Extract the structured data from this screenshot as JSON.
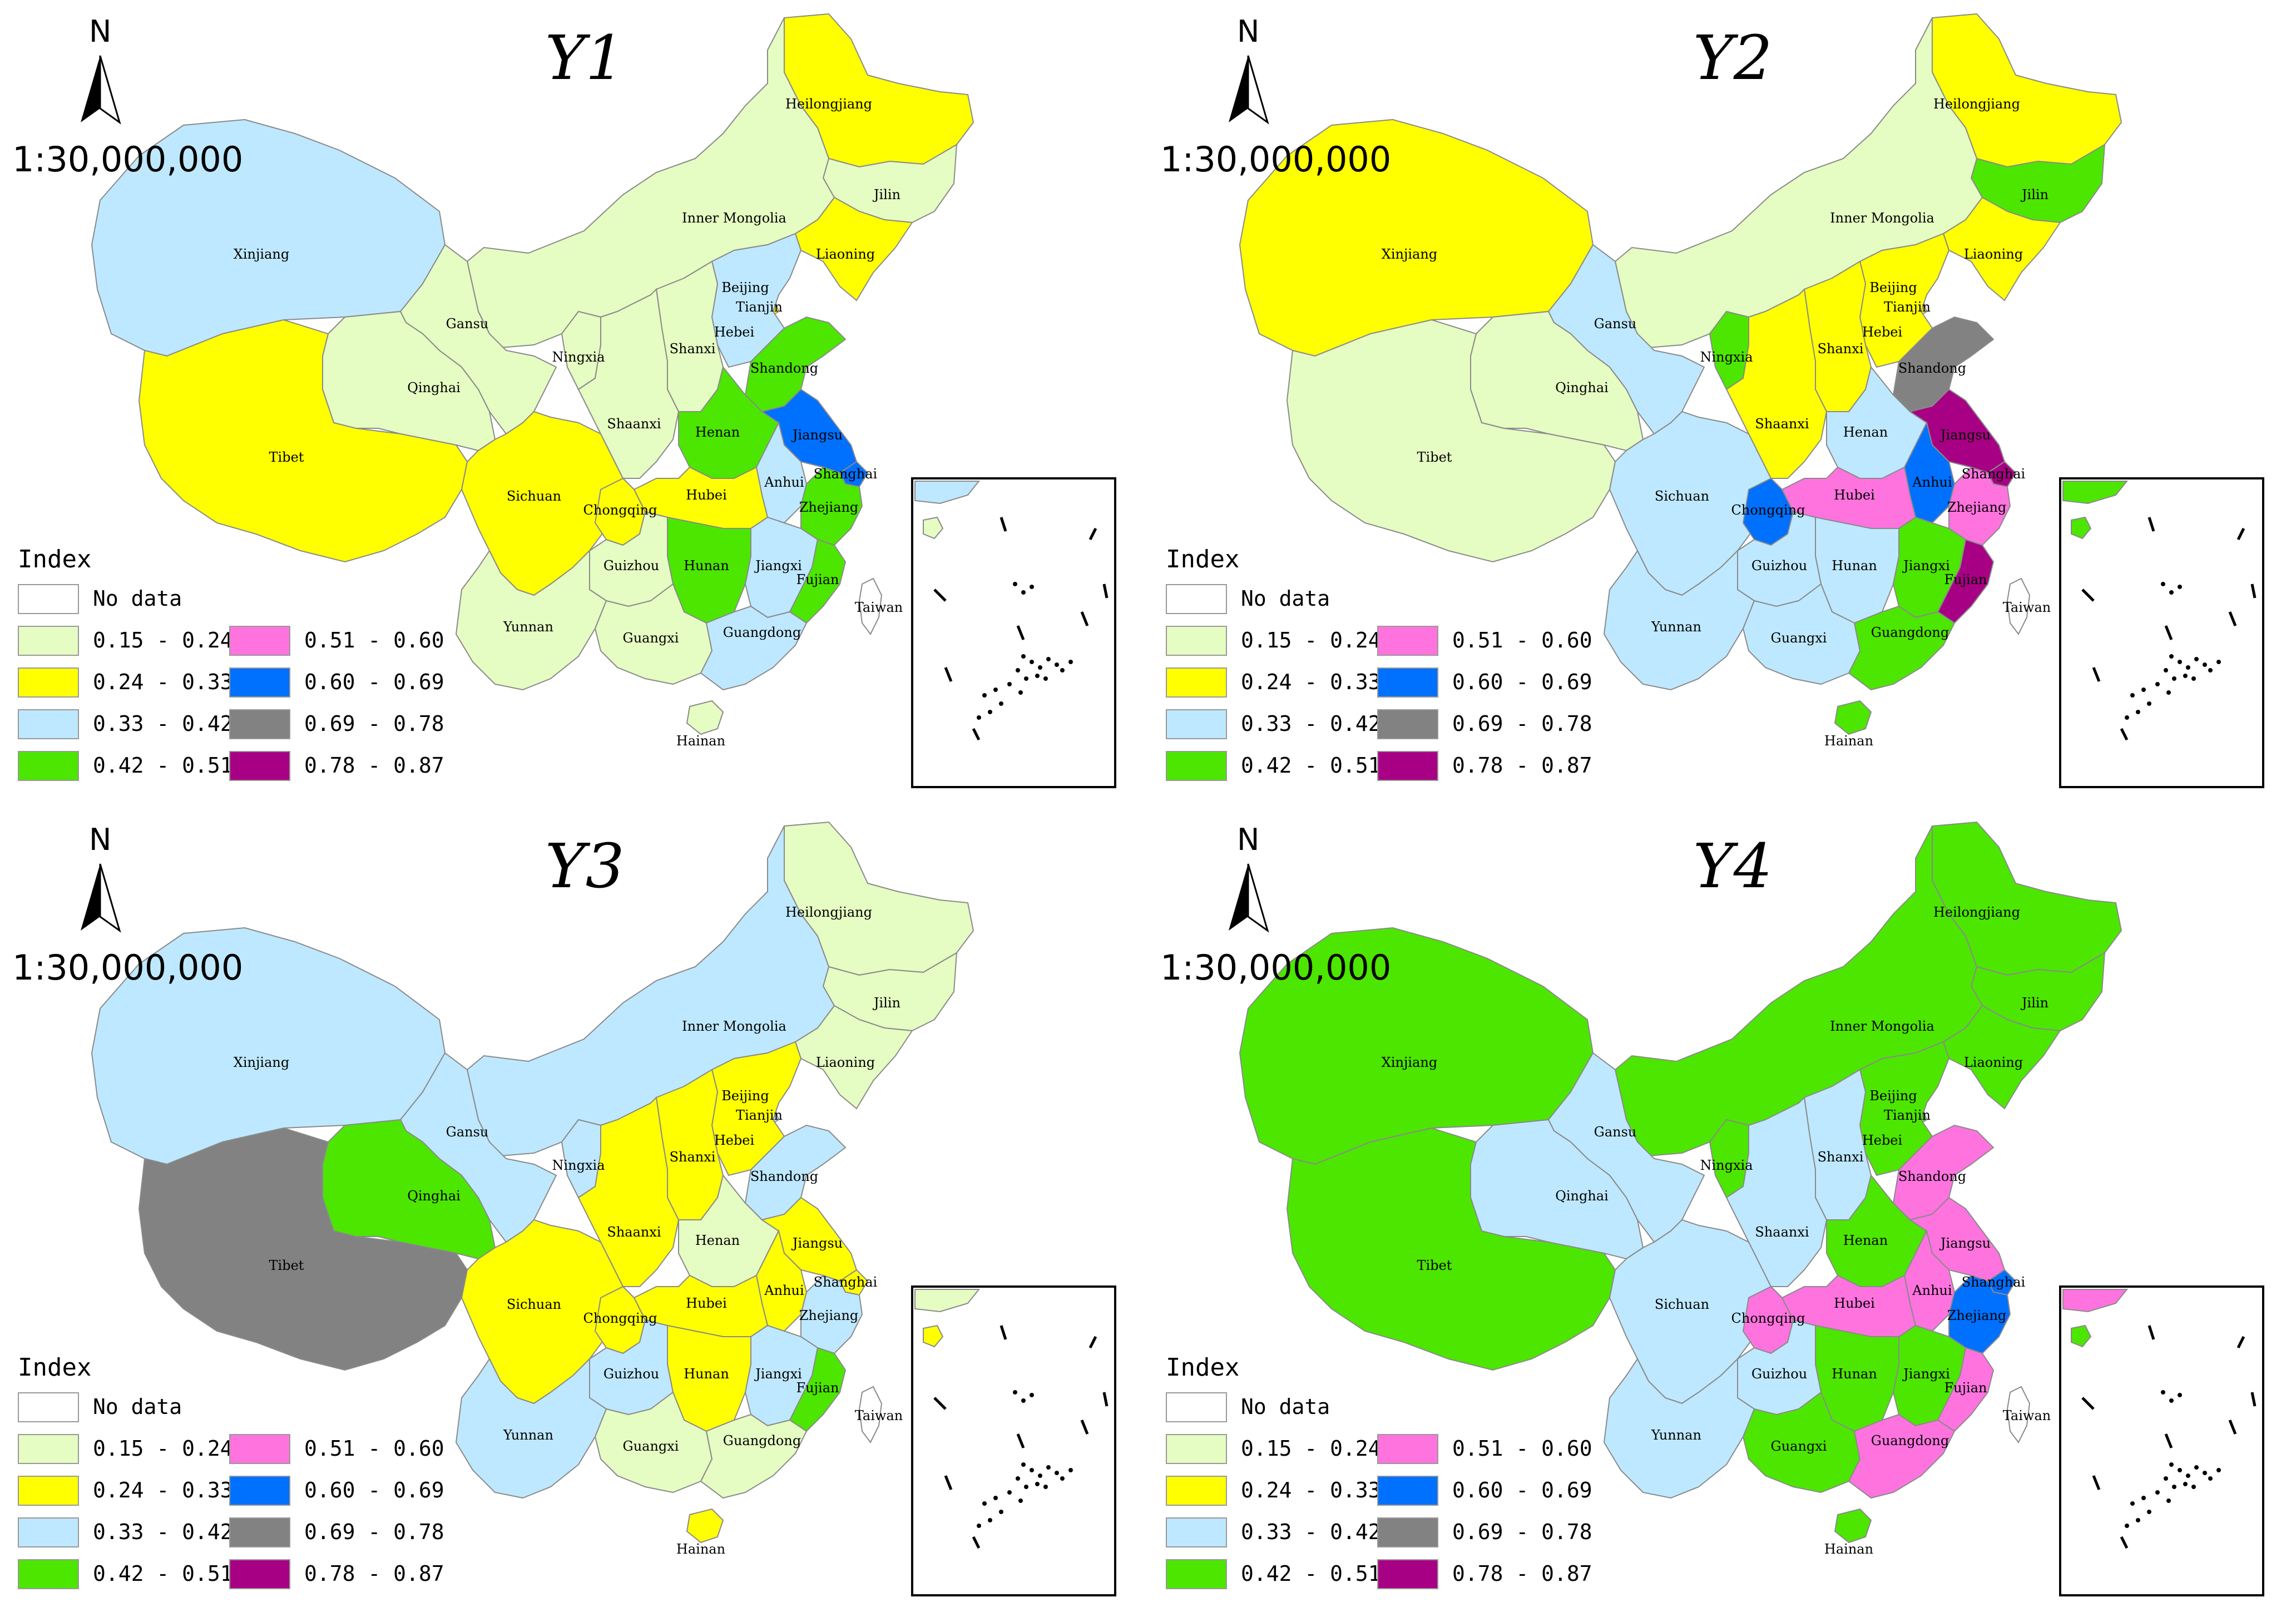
{
  "panels": [
    {
      "title": "Y1",
      "values": {
        "Heilongjiang": "0.24 - 0.33",
        "Jilin": "0.15 - 0.24",
        "Liaoning": "0.24 - 0.33",
        "Inner Mongolia": "0.15 - 0.24",
        "Xinjiang": "0.33 - 0.42",
        "Gansu": "0.15 - 0.24",
        "Qinghai": "0.15 - 0.24",
        "Ningxia": "0.15 - 0.24",
        "Tibet": "0.24 - 0.33",
        "Beijing": "0.33 - 0.42",
        "Tianjin": "0.24 - 0.33",
        "Hebei": "0.33 - 0.42",
        "Shanxi": "0.15 - 0.24",
        "Shaanxi": "0.15 - 0.24",
        "Shandong": "0.42 - 0.51",
        "Henan": "0.42 - 0.51",
        "Jiangsu": "0.60 - 0.69",
        "Anhui": "0.33 - 0.42",
        "Shanghai": "0.60 - 0.69",
        "Zhejiang": "0.42 - 0.51",
        "Hubei": "0.24 - 0.33",
        "Sichuan": "0.24 - 0.33",
        "Chongqing": "0.24 - 0.33",
        "Hunan": "0.42 - 0.51",
        "Jiangxi": "0.33 - 0.42",
        "Fujian": "0.42 - 0.51",
        "Guizhou": "0.15 - 0.24",
        "Yunnan": "0.15 - 0.24",
        "Guangxi": "0.15 - 0.24",
        "Guangdong": "0.33 - 0.42",
        "Hainan": "0.15 - 0.24",
        "Taiwan": "No data"
      }
    },
    {
      "title": "Y2",
      "values": {
        "Heilongjiang": "0.24 - 0.33",
        "Jilin": "0.42 - 0.51",
        "Liaoning": "0.24 - 0.33",
        "Inner Mongolia": "0.15 - 0.24",
        "Xinjiang": "0.24 - 0.33",
        "Gansu": "0.33 - 0.42",
        "Qinghai": "0.15 - 0.24",
        "Ningxia": "0.42 - 0.51",
        "Tibet": "0.15 - 0.24",
        "Beijing": "0.60 - 0.69",
        "Tianjin": "0.24 - 0.33",
        "Hebei": "0.24 - 0.33",
        "Shanxi": "0.24 - 0.33",
        "Shaanxi": "0.24 - 0.33",
        "Shandong": "0.69 - 0.78",
        "Henan": "0.33 - 0.42",
        "Jiangsu": "0.78 - 0.87",
        "Anhui": "0.60 - 0.69",
        "Shanghai": "0.78 - 0.87",
        "Zhejiang": "0.51 - 0.60",
        "Hubei": "0.51 - 0.60",
        "Sichuan": "0.33 - 0.42",
        "Chongqing": "0.60 - 0.69",
        "Hunan": "0.33 - 0.42",
        "Jiangxi": "0.42 - 0.51",
        "Fujian": "0.78 - 0.87",
        "Guizhou": "0.33 - 0.42",
        "Yunnan": "0.33 - 0.42",
        "Guangxi": "0.33 - 0.42",
        "Guangdong": "0.42 - 0.51",
        "Hainan": "0.42 - 0.51",
        "Taiwan": "No data"
      }
    },
    {
      "title": "Y3",
      "values": {
        "Heilongjiang": "0.15 - 0.24",
        "Jilin": "0.15 - 0.24",
        "Liaoning": "0.15 - 0.24",
        "Inner Mongolia": "0.33 - 0.42",
        "Xinjiang": "0.33 - 0.42",
        "Gansu": "0.33 - 0.42",
        "Qinghai": "0.42 - 0.51",
        "Ningxia": "0.33 - 0.42",
        "Tibet": "0.69 - 0.78",
        "Beijing": "0.51 - 0.60",
        "Tianjin": "0.33 - 0.42",
        "Hebei": "0.24 - 0.33",
        "Shanxi": "0.24 - 0.33",
        "Shaanxi": "0.24 - 0.33",
        "Shandong": "0.33 - 0.42",
        "Henan": "0.15 - 0.24",
        "Jiangsu": "0.24 - 0.33",
        "Anhui": "0.24 - 0.33",
        "Shanghai": "0.24 - 0.33",
        "Zhejiang": "0.33 - 0.42",
        "Hubei": "0.24 - 0.33",
        "Sichuan": "0.24 - 0.33",
        "Chongqing": "0.24 - 0.33",
        "Hunan": "0.24 - 0.33",
        "Jiangxi": "0.33 - 0.42",
        "Fujian": "0.42 - 0.51",
        "Guizhou": "0.33 - 0.42",
        "Yunnan": "0.33 - 0.42",
        "Guangxi": "0.15 - 0.24",
        "Guangdong": "0.15 - 0.24",
        "Hainan": "0.24 - 0.33",
        "Taiwan": "No data"
      }
    },
    {
      "title": "Y4",
      "values": {
        "Heilongjiang": "0.42 - 0.51",
        "Jilin": "0.42 - 0.51",
        "Liaoning": "0.42 - 0.51",
        "Inner Mongolia": "0.42 - 0.51",
        "Xinjiang": "0.42 - 0.51",
        "Gansu": "0.33 - 0.42",
        "Qinghai": "0.33 - 0.42",
        "Ningxia": "0.42 - 0.51",
        "Tibet": "0.42 - 0.51",
        "Beijing": "0.69 - 0.78",
        "Tianjin": "0.42 - 0.51",
        "Hebei": "0.42 - 0.51",
        "Shanxi": "0.33 - 0.42",
        "Shaanxi": "0.33 - 0.42",
        "Shandong": "0.51 - 0.60",
        "Henan": "0.42 - 0.51",
        "Jiangsu": "0.51 - 0.60",
        "Anhui": "0.51 - 0.60",
        "Shanghai": "0.60 - 0.69",
        "Zhejiang": "0.60 - 0.69",
        "Hubei": "0.51 - 0.60",
        "Sichuan": "0.33 - 0.42",
        "Chongqing": "0.51 - 0.60",
        "Hunan": "0.42 - 0.51",
        "Jiangxi": "0.42 - 0.51",
        "Fujian": "0.51 - 0.60",
        "Guizhou": "0.33 - 0.42",
        "Yunnan": "0.33 - 0.42",
        "Guangxi": "0.42 - 0.51",
        "Guangdong": "0.51 - 0.60",
        "Hainan": "0.42 - 0.51",
        "Taiwan": "No data"
      }
    }
  ],
  "north_label": "N",
  "scale": "1:30,000,000",
  "legend": {
    "title": "Index",
    "no_data": {
      "label": "No data",
      "color": "#ffffff"
    },
    "classes": [
      {
        "label": "0.15 - 0.24",
        "color": "#e5fcc2"
      },
      {
        "label": "0.24 - 0.33",
        "color": "#ffff00"
      },
      {
        "label": "0.33 - 0.42",
        "color": "#bee8ff"
      },
      {
        "label": "0.42 - 0.51",
        "color": "#4ce600"
      },
      {
        "label": "0.51 - 0.60",
        "color": "#ff73df"
      },
      {
        "label": "0.60 - 0.69",
        "color": "#0070ff"
      },
      {
        "label": "0.69 - 0.78",
        "color": "#828282"
      },
      {
        "label": "0.78 - 0.87",
        "color": "#a80084"
      }
    ]
  }
}
